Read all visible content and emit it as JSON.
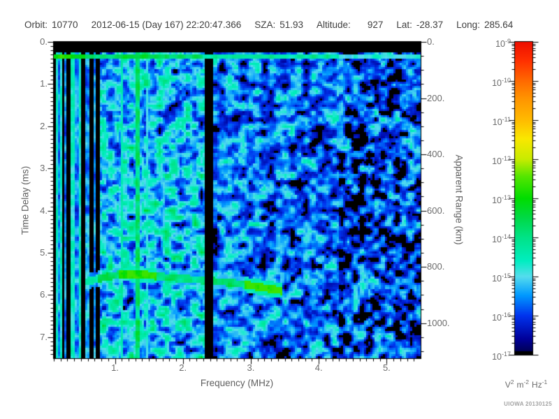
{
  "header": {
    "orbit_label": "Orbit:",
    "orbit": "10770",
    "datetime": "2012-06-15 (Day 167) 22:20:47.366",
    "sza_label": "SZA:",
    "sza": "51.93",
    "altitude_label": "Altitude:",
    "altitude": "927",
    "lat_label": "Lat:",
    "lat": "-28.37",
    "long_label": "Long:",
    "long": "285.64"
  },
  "chart_data": {
    "type": "heatmap",
    "subtype": "radar-sounder-ionogram-spectrogram",
    "xlabel": "Frequency (MHz)",
    "ylabel": "Time Delay (ms)",
    "y2label": "Apparent Range (km)",
    "x_range_mhz": [
      0.1,
      5.5
    ],
    "y_range_ms": [
      0,
      7.5
    ],
    "y2_range_km": [
      0,
      1125
    ],
    "x_tick_values": [
      1,
      2,
      3,
      4,
      5
    ],
    "x_tick_labels": [
      "1.",
      "2.",
      "3.",
      "4.",
      "5."
    ],
    "x_minor_step_mhz": 0.1,
    "y_tick_values": [
      0,
      1,
      2,
      3,
      4,
      5,
      6,
      7
    ],
    "y_tick_labels": [
      "0.",
      "1.",
      "2.",
      "3.",
      "4.",
      "5.",
      "6.",
      "7."
    ],
    "y_minor_step_ms": 0.1,
    "y2_tick_values": [
      0,
      200,
      400,
      600,
      800,
      1000
    ],
    "y2_tick_labels": [
      "0.",
      "200.",
      "400.",
      "600.",
      "800.",
      "1000."
    ],
    "y2_minor_step_km": 50,
    "colorbar": {
      "scale": "log10",
      "exponent_ticks": [
        -9,
        -10,
        -11,
        -12,
        -13,
        -14,
        -15,
        -16,
        -17
      ],
      "units_parts": [
        {
          "base": "V",
          "exp": "2"
        },
        {
          "base": "m",
          "exp": "-2"
        },
        {
          "base": "Hz",
          "exp": "-1"
        }
      ],
      "gradient_stops": [
        [
          0.0,
          "#000044"
        ],
        [
          0.05,
          "#000099"
        ],
        [
          0.125,
          "#0033ee"
        ],
        [
          0.19,
          "#0099ff"
        ],
        [
          0.25,
          "#55ddee"
        ],
        [
          0.3,
          "#00eec0"
        ],
        [
          0.375,
          "#00e387"
        ],
        [
          0.44,
          "#00d944"
        ],
        [
          0.5,
          "#00dd00"
        ],
        [
          0.57,
          "#55e600"
        ],
        [
          0.625,
          "#c8ec00"
        ],
        [
          0.69,
          "#fae800"
        ],
        [
          0.75,
          "#ffbb00"
        ],
        [
          0.82,
          "#ff9400"
        ],
        [
          0.875,
          "#ff6a00"
        ],
        [
          0.94,
          "#ff3000"
        ],
        [
          1.0,
          "#ee0f00"
        ]
      ]
    },
    "palette_fraction_max": 0.55,
    "features": {
      "black_band_ms": [
        0,
        0.27
      ],
      "surface_line": {
        "delay_ms": 0.33,
        "halfwidth_ms": 0.055,
        "segments": [
          {
            "f": [
              0.1,
              0.55
            ],
            "amp": 0.82
          },
          {
            "f": [
              0.55,
              2.3
            ],
            "amp": 0.72
          },
          {
            "f": [
              2.3,
              4.3
            ],
            "amp": 0.58
          },
          {
            "f": [
              4.3,
              5.51
            ],
            "amp": 0.46
          }
        ]
      },
      "striped_zone": {
        "f": [
          0.1,
          0.78
        ]
      },
      "vertical_lines": [
        {
          "f": 1.1,
          "amp": 0.58,
          "halfwidth_mhz": 0.018
        },
        {
          "f": 1.34,
          "amp": 0.72,
          "halfwidth_mhz": 0.026
        },
        {
          "f": 1.48,
          "amp": 0.5,
          "halfwidth_mhz": 0.014
        }
      ],
      "dark_band": {
        "f": [
          2.33,
          2.43
        ]
      },
      "noise_zones": [
        {
          "f": [
            0.78,
            2.33
          ],
          "level": 0.42,
          "spread": 0.45
        },
        {
          "f": [
            2.43,
            4.3
          ],
          "level": 0.3,
          "spread": 0.4
        },
        {
          "f": [
            4.3,
            5.51
          ],
          "level": 0.22,
          "spread": 0.45,
          "black_fraction": 0.38
        }
      ],
      "echo_trace": {
        "halfwidth_ms": 0.09,
        "points": [
          [
            0.55,
            5.7
          ],
          [
            0.75,
            5.62
          ],
          [
            0.95,
            5.55
          ],
          [
            1.15,
            5.5
          ],
          [
            1.45,
            5.52
          ],
          [
            1.75,
            5.58
          ],
          [
            2.05,
            5.62
          ],
          [
            2.35,
            5.66
          ],
          [
            2.65,
            5.7
          ],
          [
            2.95,
            5.76
          ],
          [
            3.15,
            5.82
          ],
          [
            3.35,
            5.87
          ],
          [
            3.45,
            5.9
          ]
        ],
        "segments": [
          {
            "f": [
              0.55,
              0.75
            ],
            "amp": 0.55
          },
          {
            "f": [
              0.75,
              1.05
            ],
            "amp": 0.75
          },
          {
            "f": [
              1.05,
              1.6
            ],
            "amp": 1.0
          },
          {
            "f": [
              1.6,
              2.33
            ],
            "amp": 0.72
          },
          {
            "f": [
              2.43,
              2.9
            ],
            "amp": 0.72
          },
          {
            "f": [
              2.9,
              3.45
            ],
            "amp": 1.0
          }
        ]
      }
    },
    "credit": "UIOWA 20130125"
  }
}
